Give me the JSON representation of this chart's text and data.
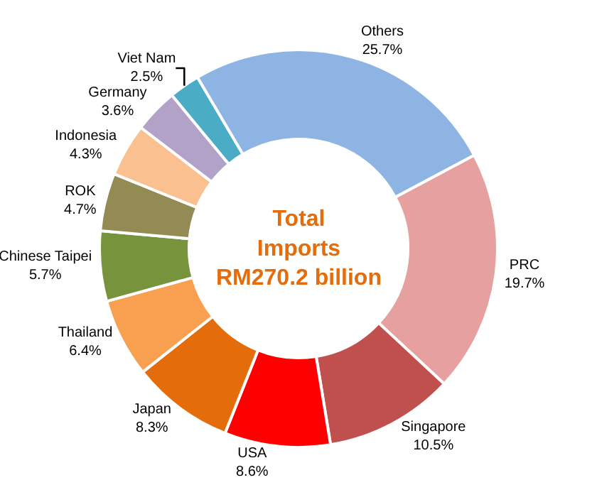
{
  "chart_data": {
    "type": "donut",
    "title": "Total Imports RM270.2 billion",
    "categories": [
      "PRC",
      "Singapore",
      "USA",
      "Japan",
      "Thailand",
      "Chinese Taipei",
      "ROK",
      "Indonesia",
      "Germany",
      "Viet Nam",
      "Others"
    ],
    "values": [
      19.7,
      10.5,
      8.6,
      8.3,
      6.4,
      5.7,
      4.7,
      4.3,
      3.6,
      2.5,
      25.7
    ],
    "value_labels": [
      "19.7%",
      "10.5%",
      "8.6%",
      "8.3%",
      "6.4%",
      "5.7%",
      "4.7%",
      "4.3%",
      "3.6%",
      "2.5%",
      "25.7%"
    ],
    "colors": [
      "#e6a0a0",
      "#c0504d",
      "#ff0000",
      "#e46c0a",
      "#f9a050",
      "#77933c",
      "#948a54",
      "#fac090",
      "#b3a2c7",
      "#4bacc6",
      "#8db4e2"
    ],
    "legend": false
  }
}
